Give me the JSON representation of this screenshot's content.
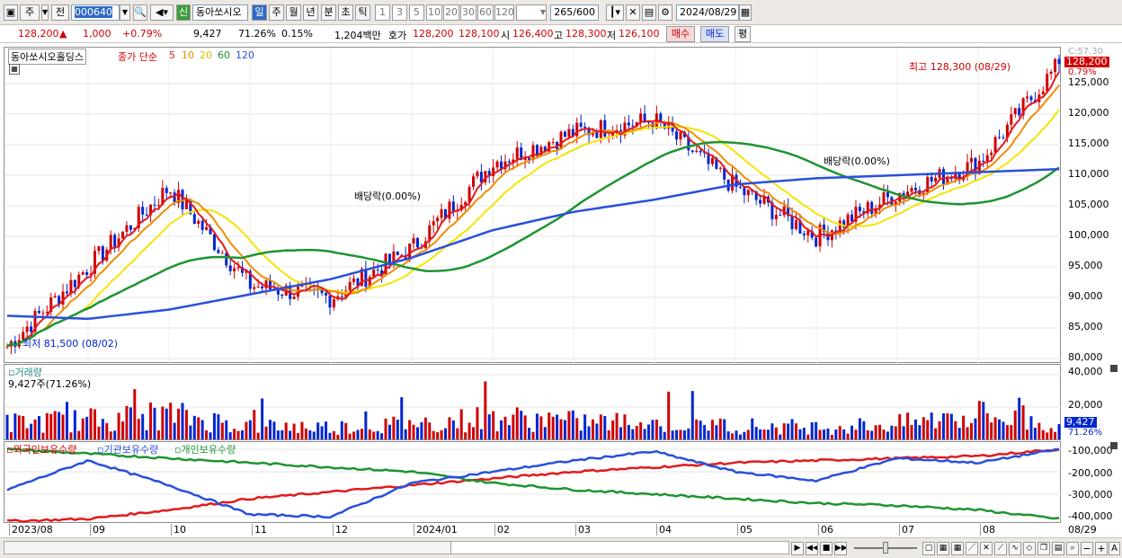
{
  "toolbar": {
    "mode": "주",
    "prev": "전",
    "code": "000640",
    "name": "동아쏘시오",
    "new_label": "신",
    "periods": [
      "일",
      "주",
      "월",
      "년",
      "분",
      "초",
      "틱"
    ],
    "minutes": [
      "1",
      "3",
      "5",
      "10",
      "20",
      "30",
      "60",
      "120"
    ],
    "count": "265",
    "count_total": "/600",
    "date": "2024/08/29"
  },
  "quote": {
    "price": "128,200",
    "arrow": "▲",
    "change": "1,000",
    "pct": "+0.79%",
    "volume": "9,427",
    "vol_ratio": "71.26%",
    "turnover": "0.15%",
    "amount": "1,204백만",
    "bid_label": "호가",
    "bid": "128,200",
    "ask": "128,100",
    "open_label": "시",
    "open": "126,400",
    "high_label": "고",
    "high": "128,300",
    "low_label": "저",
    "low": "126,100",
    "buy": "매수",
    "sell": "매도",
    "avg": "평"
  },
  "colors": {
    "up": "#d00000",
    "down": "#0026d0",
    "ma5": "#e31a1c",
    "ma10": "#f08c00",
    "ma20": "#f5e400",
    "ma60": "#1e9432",
    "ma120": "#2850dc"
  },
  "price_panel": {
    "title": "동아쏘시오홀딩스",
    "ma_label": "종가 단순",
    "ma_periods": [
      "5",
      "10",
      "20",
      "60",
      "120"
    ],
    "high_note": "최고 128,300 (08/29)",
    "low_note": "최저 81,500 (08/02)",
    "div_note_1": "배당락(0.00%)",
    "div_note_2": "배당락(0.00%)",
    "top_label": "C:57.30",
    "price_tag": "128,200",
    "pct_tag": "0.79%",
    "ticks": [
      "125,000",
      "120,000",
      "115,000",
      "110,000",
      "105,000",
      "100,000",
      "95,000",
      "90,000",
      "85,000",
      "80,000"
    ]
  },
  "volume_panel": {
    "title": "거래량",
    "value_note": "9,427주(71.26%)",
    "ticks": [
      "40,000",
      "20,000"
    ],
    "tag": "9,427",
    "tag_pct": "71.26%"
  },
  "flow_panel": {
    "legend": [
      "외국인보유수량",
      "기관보유수량",
      "개인보유수량"
    ],
    "ticks": [
      "-100,000",
      "-200,000",
      "-300,000",
      "-400,000"
    ]
  },
  "xaxis": [
    "2023/08",
    "09",
    "10",
    "11",
    "12",
    "2024/01",
    "02",
    "03",
    "04",
    "05",
    "06",
    "07",
    "08",
    "08/29"
  ],
  "chart_data": {
    "type": "line",
    "x": [
      "2023/08",
      "2023/09",
      "2023/10",
      "2023/11",
      "2023/12",
      "2024/01",
      "2024/02",
      "2024/03",
      "2024/04",
      "2024/05",
      "2024/06",
      "2024/07",
      "2024/08",
      "2024/08/29"
    ],
    "series": [
      {
        "name": "종가",
        "values": [
          82000,
          95000,
          108000,
          92000,
          90000,
          98000,
          112000,
          117000,
          119000,
          108000,
          100000,
          107000,
          112000,
          128200
        ]
      },
      {
        "name": "120",
        "values": [
          87000,
          86500,
          88000,
          90500,
          93000,
          96500,
          101000,
          104000,
          106000,
          108500,
          109500,
          110000,
          110500,
          111000
        ]
      },
      {
        "name": "거래량",
        "values": [
          12000,
          14000,
          18000,
          10000,
          9000,
          11000,
          16000,
          13000,
          12000,
          10000,
          9000,
          11000,
          18000,
          9427
        ]
      },
      {
        "name": "외국인보유수량",
        "values": [
          -420000,
          -410000,
          -370000,
          -320000,
          -290000,
          -260000,
          -230000,
          -200000,
          -180000,
          -160000,
          -150000,
          -140000,
          -130000,
          -100000
        ]
      },
      {
        "name": "기관보유수량",
        "values": [
          -100000,
          -120000,
          -140000,
          -160000,
          -180000,
          -200000,
          -250000,
          -280000,
          -300000,
          -320000,
          -340000,
          -350000,
          -370000,
          -410000
        ]
      },
      {
        "name": "개인보유수량",
        "values": [
          -280000,
          -150000,
          -260000,
          -390000,
          -400000,
          -250000,
          -200000,
          -150000,
          -110000,
          -200000,
          -240000,
          -140000,
          -160000,
          -100000
        ]
      }
    ],
    "ylim": [
      80000,
      130000
    ],
    "volume_ylim": [
      0,
      45000
    ],
    "flow_ylim": [
      -420000,
      -80000
    ],
    "grid": true
  }
}
